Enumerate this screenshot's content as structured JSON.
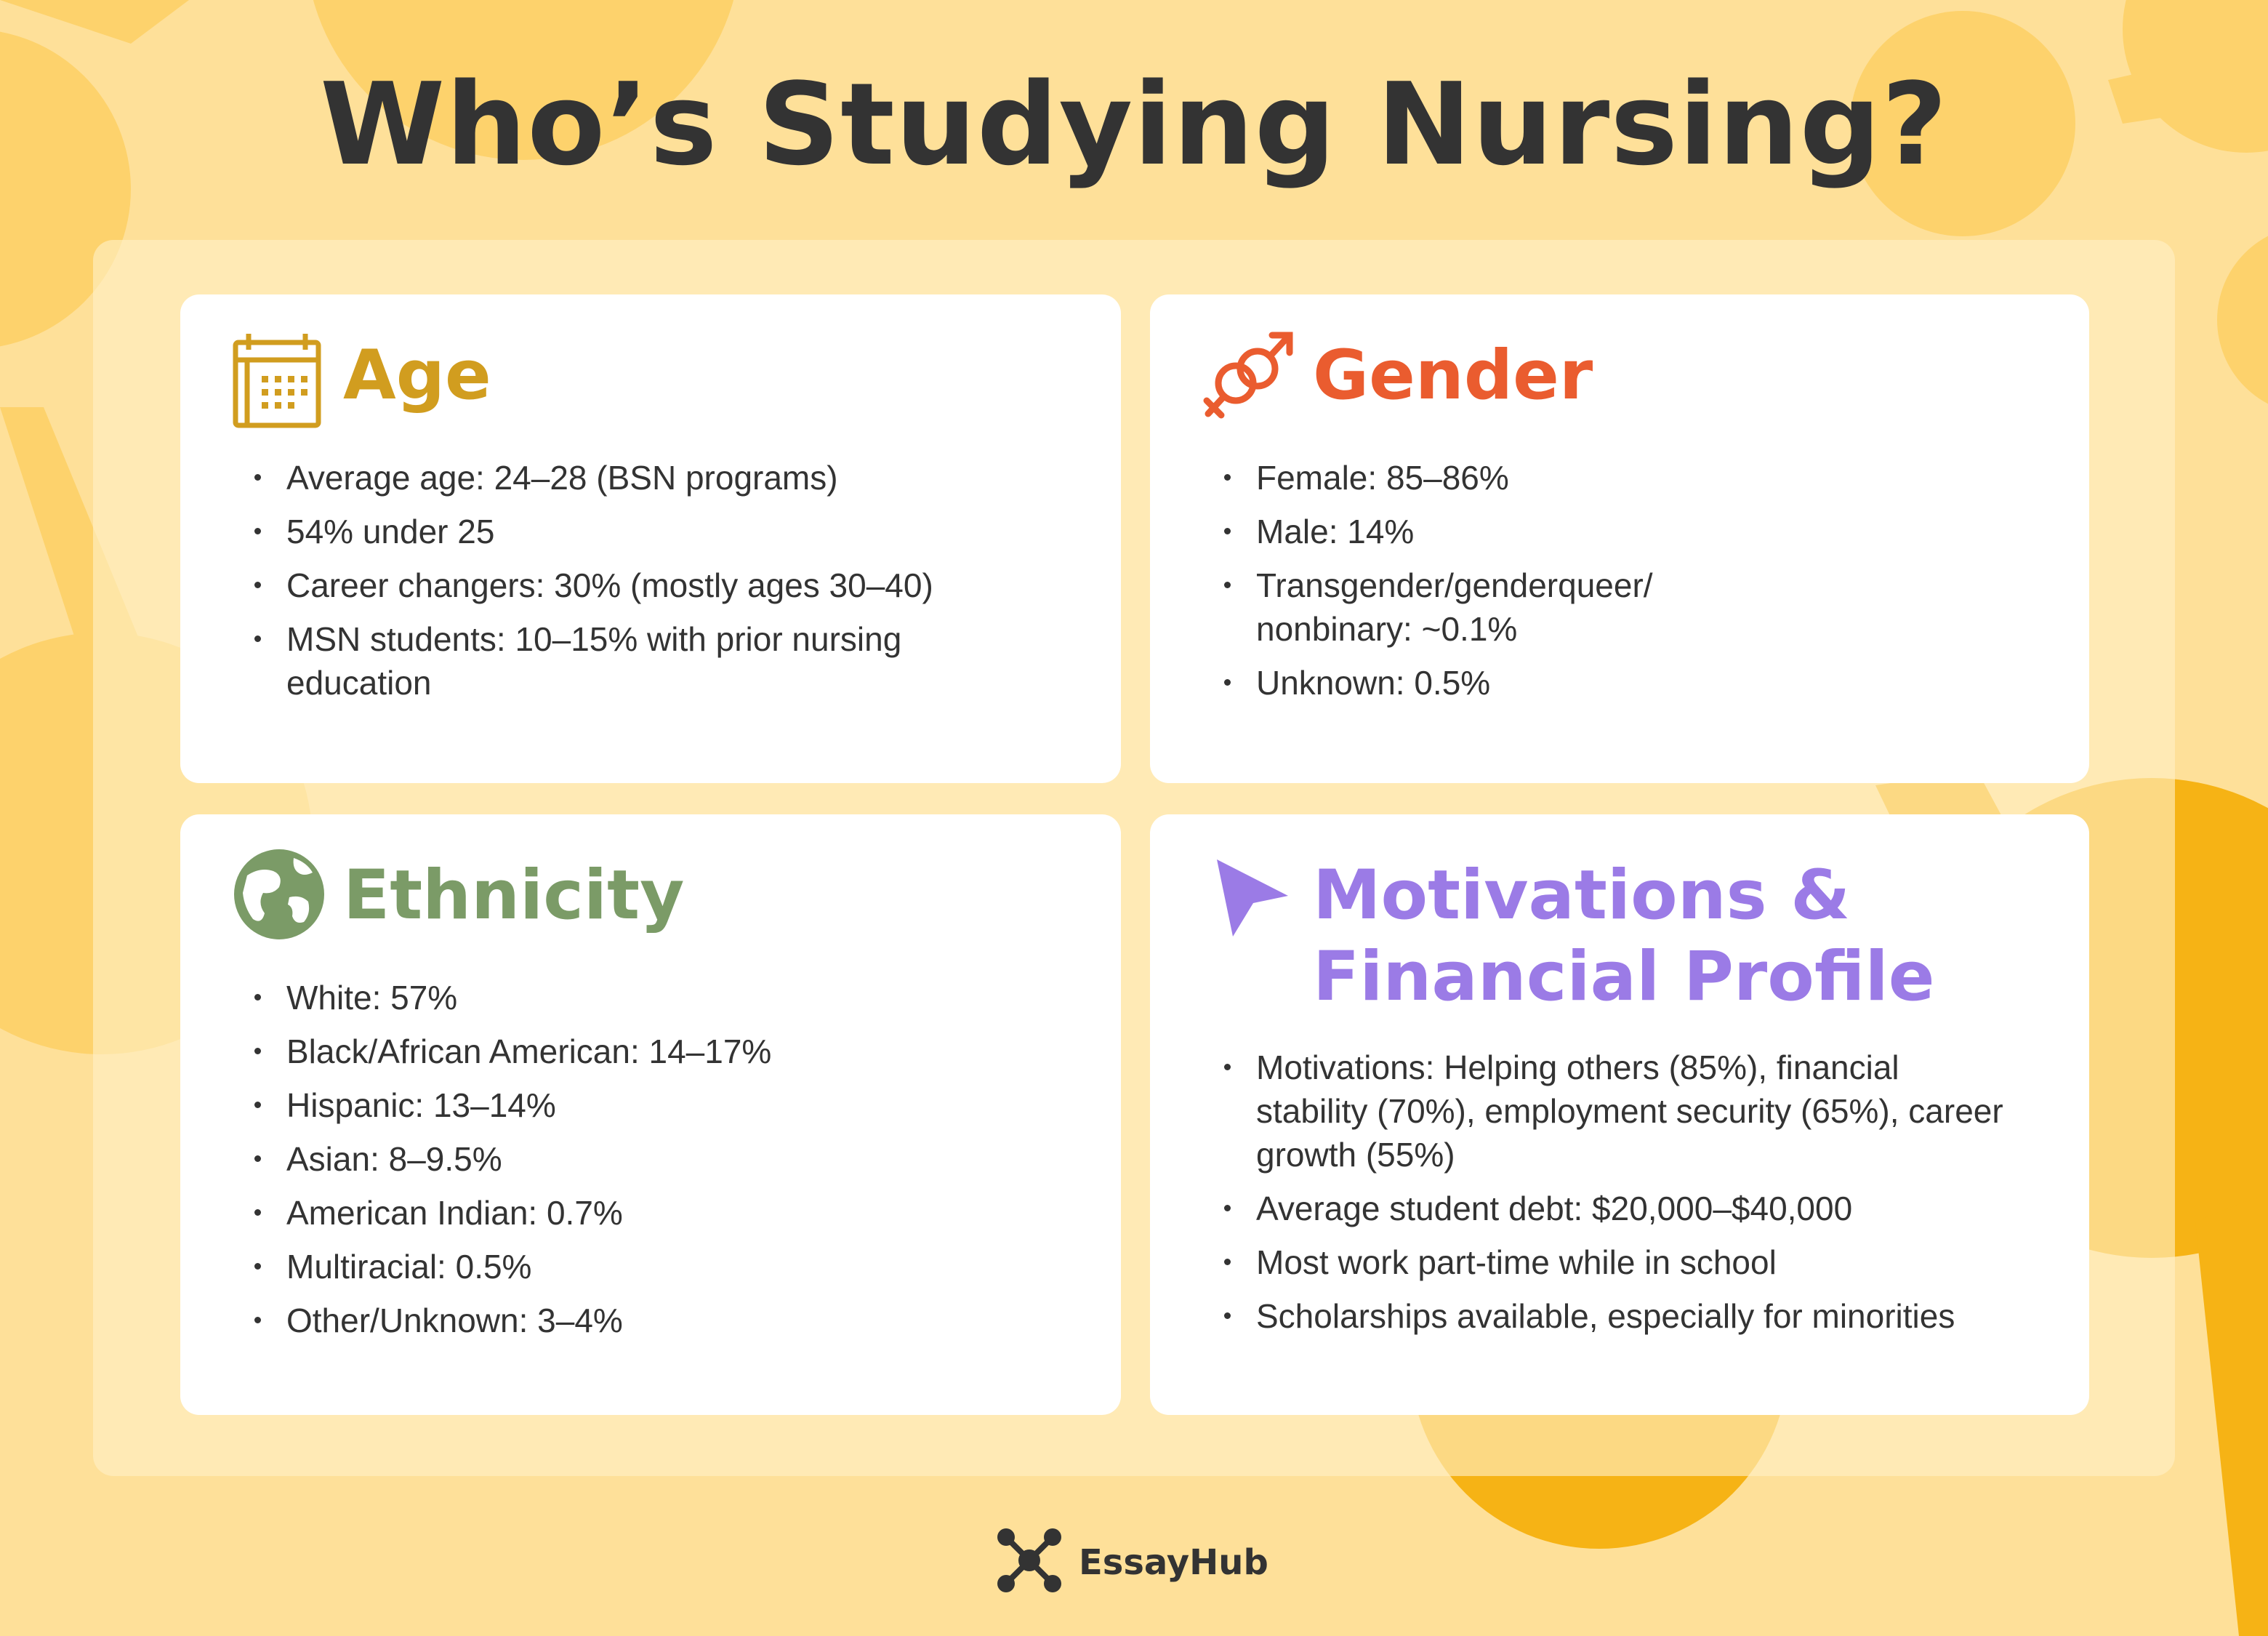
{
  "title": "Who’s Studying Nursing?",
  "colors": {
    "background": "#fee099",
    "age": "#d19d1f",
    "gender": "#ea5c2f",
    "ethnicity": "#7b9b67",
    "motivations": "#9b7be6",
    "text": "#333333"
  },
  "cards": {
    "age": {
      "icon": "calendar-icon",
      "title": "Age",
      "items": [
        "Average age: 24–28 (BSN programs)",
        "54% under 25",
        "Career changers: 30% (mostly ages 30–40)",
        "MSN students: 10–15% with prior nursing education"
      ]
    },
    "gender": {
      "icon": "gender-symbols-icon",
      "title": "Gender",
      "items": [
        "Female: 85–86%",
        "Male: 14%",
        "Transgender/genderqueer/ nonbinary: ~0.1%",
        "Unknown: 0.5%"
      ]
    },
    "ethnicity": {
      "icon": "globe-icon",
      "title": "Ethnicity",
      "items": [
        "White: 57%",
        "Black/African American: 14–17%",
        "Hispanic: 13–14%",
        "Asian: 8–9.5%",
        "American Indian: 0.7%",
        "Multiracial: 0.5%",
        "Other/Unknown: 3–4%"
      ]
    },
    "motivations": {
      "icon": "cursor-arrow-icon",
      "title_line1": "Motivations &",
      "title_line2": "Financial Profile",
      "items": [
        "Motivations: Helping others (85%), financial stability (70%), employment security (65%), career growth (55%)",
        "Average student debt: $20,000–$40,000",
        "Most work part-time while in school",
        "Scholarships available, especially for minorities"
      ]
    }
  },
  "footer": {
    "icon": "essayhub-logo-icon",
    "brand": "EssayHub"
  }
}
